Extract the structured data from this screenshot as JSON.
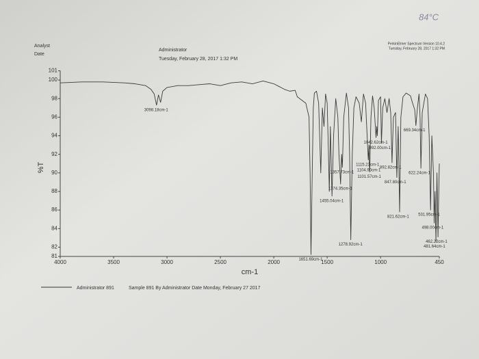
{
  "chart_data": {
    "type": "line",
    "handwritten_note": "84°C",
    "analyst_label": "Analyst",
    "date_label": "Date",
    "analyst": "Administrator",
    "date": "Tuesday, February 28, 2017 1:32 PM",
    "software": "PerkinElmer Spectrum Version 10.4.2",
    "software_date": "Tuesday, February 28, 2017 1:32 PM",
    "x_label": "cm-1",
    "y_label": "%T",
    "xlim": [
      4000,
      450
    ],
    "ylim": [
      81,
      101
    ],
    "xticks": [
      4000,
      3500,
      3000,
      2500,
      2000,
      1500,
      1000,
      450
    ],
    "yticks": [
      81,
      82,
      84,
      86,
      88,
      90,
      92,
      94,
      96,
      98,
      100,
      101
    ],
    "legend_note": "Sample 891 By Administrator Date Monday, February 27 2017",
    "x": [
      4000,
      3800,
      3600,
      3400,
      3300,
      3200,
      3150,
      3120,
      3098,
      3080,
      3060,
      3040,
      3000,
      2900,
      2800,
      2700,
      2600,
      2500,
      2400,
      2300,
      2200,
      2100,
      2000,
      1950,
      1900,
      1850,
      1800,
      1780,
      1700,
      1670,
      1660,
      1651.69,
      1640,
      1630,
      1620,
      1600,
      1580,
      1560,
      1545,
      1530,
      1515,
      1500,
      1490,
      1480,
      1470,
      1455.04,
      1440,
      1420,
      1400,
      1390,
      1374.35,
      1365,
      1357.73,
      1345,
      1320,
      1300,
      1290,
      1278.92,
      1265,
      1250,
      1230,
      1200,
      1180,
      1160,
      1140,
      1130,
      1115.23,
      1108,
      1104.9,
      1101.57,
      1090,
      1075,
      1060,
      1042.62,
      1036,
      1030,
      1020,
      1000,
      992,
      980,
      960,
      940,
      920,
      905,
      892.82,
      880,
      860,
      847.8,
      835,
      821.62,
      810,
      790,
      760,
      720,
      700,
      680,
      669.34,
      655,
      640,
      630,
      622.24,
      610,
      580,
      560,
      545,
      531.95,
      520,
      505,
      498,
      490,
      481.64,
      472,
      462.22,
      455,
      450
    ],
    "series": [
      {
        "name": "Administrator 891",
        "color": "#3a3a3a",
        "values": [
          99.7,
          99.8,
          99.8,
          99.7,
          99.6,
          99.4,
          99.0,
          98.5,
          97.3,
          98.4,
          97.6,
          98.8,
          99.2,
          99.4,
          99.4,
          99.5,
          99.6,
          99.4,
          99.7,
          99.8,
          99.6,
          99.9,
          99.6,
          99.3,
          99.0,
          98.8,
          98.9,
          98.2,
          97.5,
          96,
          90,
          81.2,
          90,
          97,
          98.6,
          98.8,
          97.5,
          90,
          97,
          95,
          98.5,
          97.5,
          93,
          88,
          95,
          87.5,
          94,
          98,
          96,
          92,
          88.8,
          92,
          90.6,
          96,
          98.6,
          97,
          92,
          82.8,
          92,
          97,
          98.2,
          97.5,
          95.5,
          98.5,
          97.5,
          95,
          91.4,
          93,
          90.8,
          90.1,
          96,
          98.3,
          97,
          93.8,
          95,
          94,
          97.8,
          98.2,
          93.2,
          97,
          98,
          96.5,
          98,
          96.5,
          91.1,
          96,
          96.5,
          89.5,
          95,
          85.8,
          96,
          98.2,
          98.6,
          98.3,
          97.5,
          96.8,
          95.1,
          97,
          98.5,
          96,
          90.5,
          96.5,
          98.5,
          98,
          94,
          86,
          94,
          90,
          84.6,
          88,
          82.6,
          90,
          83.1,
          88,
          91
        ]
      }
    ],
    "annotations": [
      {
        "label": "3098.18cm-1",
        "x": 3098,
        "y": 97.3
      },
      {
        "label": "1651.69cm-1",
        "x": 1651.69,
        "y": 81.2
      },
      {
        "label": "1455.04cm-1",
        "x": 1455.04,
        "y": 87.5
      },
      {
        "label": "1374.35cm-1",
        "x": 1374.35,
        "y": 88.8
      },
      {
        "label": "1357.73cm-1",
        "x": 1357.73,
        "y": 90.6
      },
      {
        "label": "1278.92cm-1",
        "x": 1278.92,
        "y": 82.8
      },
      {
        "label": "1115.23cm-1",
        "x": 1115.23,
        "y": 91.4
      },
      {
        "label": "1104.90cm-1",
        "x": 1104.9,
        "y": 90.8
      },
      {
        "label": "1101.57cm-1",
        "x": 1101.57,
        "y": 90.1
      },
      {
        "label": "1042.62cm-1",
        "x": 1042.62,
        "y": 93.8
      },
      {
        "label": "992.00cm-1",
        "x": 992,
        "y": 93.2
      },
      {
        "label": "892.82cm-1",
        "x": 892.82,
        "y": 91.1
      },
      {
        "label": "847.80cm-1",
        "x": 847.8,
        "y": 89.5
      },
      {
        "label": "821.62cm-1",
        "x": 821.62,
        "y": 85.8
      },
      {
        "label": "669.34cm-1",
        "x": 669.34,
        "y": 95.1
      },
      {
        "label": "622.24cm-1",
        "x": 622.24,
        "y": 90.5
      },
      {
        "label": "531.95cm-1",
        "x": 531.95,
        "y": 86
      },
      {
        "label": "498.00cm-1",
        "x": 498,
        "y": 84.6
      },
      {
        "label": "462.22cm-1",
        "x": 462.22,
        "y": 83.1
      },
      {
        "label": "481.64cm-1",
        "x": 481.64,
        "y": 82.6
      }
    ]
  }
}
